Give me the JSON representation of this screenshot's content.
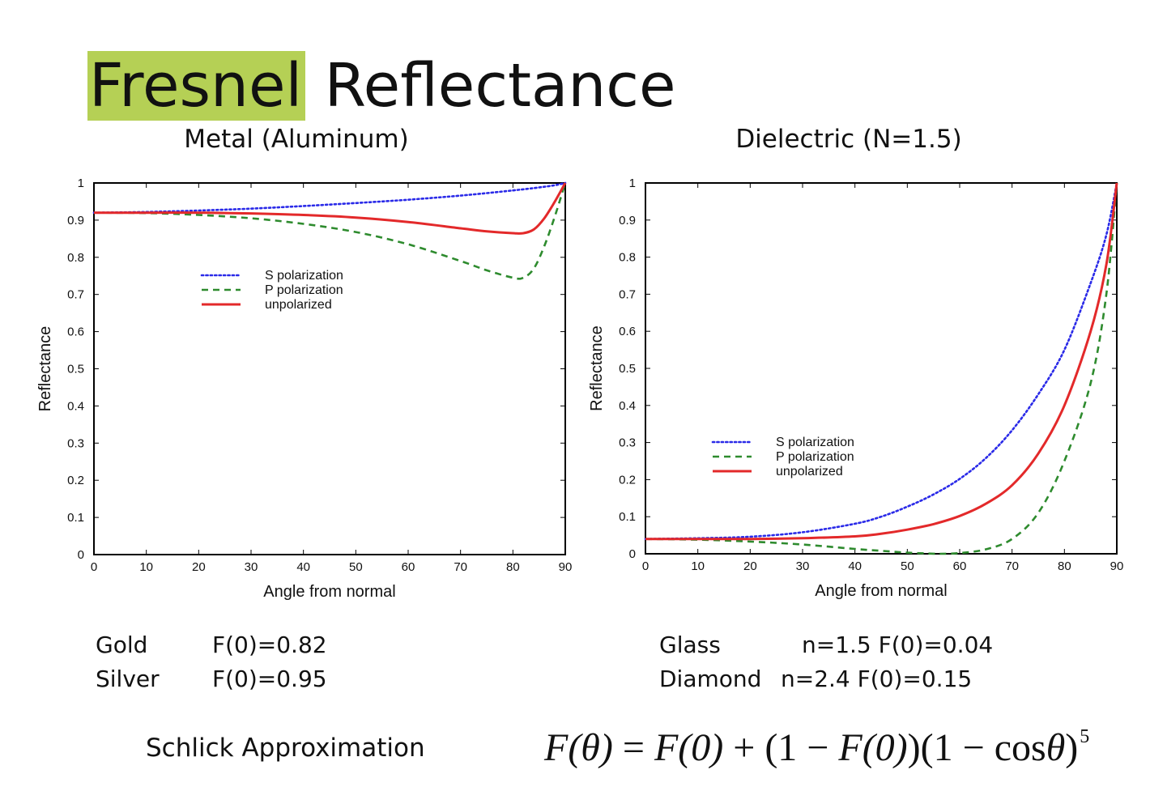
{
  "title": {
    "highlight": "Fresnel",
    "rest": "Reflectance"
  },
  "colors": {
    "highlight": "#b5d055",
    "s": "#2a2ae8",
    "p": "#2e8b2e",
    "u": "#e3292a"
  },
  "chart_data": [
    {
      "type": "line",
      "title": "Metal (Aluminum)",
      "xlabel": "Angle from normal",
      "ylabel": "Reflectance",
      "xlim": [
        0,
        90
      ],
      "ylim": [
        0,
        1
      ],
      "xticks": [
        0,
        10,
        20,
        30,
        40,
        50,
        60,
        70,
        80,
        90
      ],
      "yticks": [
        0,
        0.1,
        0.2,
        0.3,
        0.4,
        0.5,
        0.6,
        0.7,
        0.8,
        0.9,
        1
      ],
      "grid": false,
      "legend": "center",
      "series": [
        {
          "name": "S polarization",
          "style": "dotted",
          "color": "#2a2ae8",
          "x": [
            0,
            10,
            20,
            30,
            40,
            50,
            60,
            70,
            80,
            85,
            88,
            90
          ],
          "y": [
            0.92,
            0.922,
            0.926,
            0.931,
            0.938,
            0.946,
            0.955,
            0.966,
            0.98,
            0.988,
            0.994,
            1.0
          ]
        },
        {
          "name": "P polarization",
          "style": "dashed",
          "color": "#2e8b2e",
          "x": [
            0,
            10,
            20,
            30,
            40,
            50,
            60,
            70,
            75,
            80,
            82,
            84,
            86,
            88,
            90
          ],
          "y": [
            0.92,
            0.919,
            0.914,
            0.905,
            0.89,
            0.868,
            0.835,
            0.79,
            0.765,
            0.745,
            0.745,
            0.77,
            0.83,
            0.91,
            1.0
          ]
        },
        {
          "name": "unpolarized",
          "style": "solid",
          "color": "#e3292a",
          "x": [
            0,
            10,
            20,
            30,
            40,
            50,
            60,
            70,
            75,
            80,
            82,
            84,
            86,
            88,
            90
          ],
          "y": [
            0.92,
            0.92,
            0.92,
            0.918,
            0.914,
            0.907,
            0.895,
            0.878,
            0.87,
            0.865,
            0.865,
            0.875,
            0.905,
            0.95,
            1.0
          ]
        }
      ]
    },
    {
      "type": "line",
      "title": "Dielectric (N=1.5)",
      "xlabel": "Angle from normal",
      "ylabel": "Reflectance",
      "xlim": [
        0,
        90
      ],
      "ylim": [
        0,
        1
      ],
      "xticks": [
        0,
        10,
        20,
        30,
        40,
        50,
        60,
        70,
        80,
        90
      ],
      "yticks": [
        0,
        0.1,
        0.2,
        0.3,
        0.4,
        0.5,
        0.6,
        0.7,
        0.8,
        0.9,
        1
      ],
      "grid": false,
      "legend": "center-right",
      "series": [
        {
          "name": "S polarization",
          "style": "dotted",
          "color": "#2a2ae8",
          "x": [
            0,
            10,
            20,
            30,
            40,
            45,
            50,
            55,
            60,
            65,
            70,
            75,
            80,
            85,
            88,
            90
          ],
          "y": [
            0.04,
            0.042,
            0.046,
            0.058,
            0.081,
            0.1,
            0.127,
            0.16,
            0.202,
            0.258,
            0.333,
            0.43,
            0.55,
            0.73,
            0.86,
            1.0
          ]
        },
        {
          "name": "P polarization",
          "style": "dashed",
          "color": "#2e8b2e",
          "x": [
            0,
            10,
            20,
            30,
            40,
            45,
            50,
            55,
            56.3,
            60,
            65,
            70,
            75,
            80,
            85,
            88,
            90
          ],
          "y": [
            0.04,
            0.038,
            0.033,
            0.025,
            0.013,
            0.008,
            0.003,
            0.0003,
            0.0,
            0.002,
            0.012,
            0.04,
            0.11,
            0.25,
            0.46,
            0.7,
            1.0
          ]
        },
        {
          "name": "unpolarized",
          "style": "solid",
          "color": "#e3292a",
          "x": [
            0,
            10,
            20,
            30,
            40,
            45,
            50,
            55,
            60,
            65,
            70,
            75,
            80,
            85,
            88,
            90
          ],
          "y": [
            0.04,
            0.04,
            0.04,
            0.042,
            0.047,
            0.054,
            0.065,
            0.08,
            0.102,
            0.135,
            0.185,
            0.27,
            0.4,
            0.6,
            0.78,
            1.0
          ]
        }
      ]
    }
  ],
  "metals": {
    "rows": [
      {
        "name": "Gold",
        "value": "F(0)=0.82"
      },
      {
        "name": "Silver",
        "value": "F(0)=0.95"
      }
    ]
  },
  "dielectrics": {
    "rows": [
      {
        "name": "Glass",
        "value": "n=1.5 F(0)=0.04"
      },
      {
        "name": "Diamond",
        "value": "n=2.4 F(0)=0.15"
      }
    ]
  },
  "schlick": {
    "label": "Schlick Approximation",
    "formula": {
      "lhs": "F(θ)",
      "eq": " = ",
      "t1": "F(0)",
      "plus": " + (1 − ",
      "t2": "F(0)",
      "close": ")(1 − cos",
      "theta": "θ",
      "end": ")",
      "exp": "5"
    }
  }
}
